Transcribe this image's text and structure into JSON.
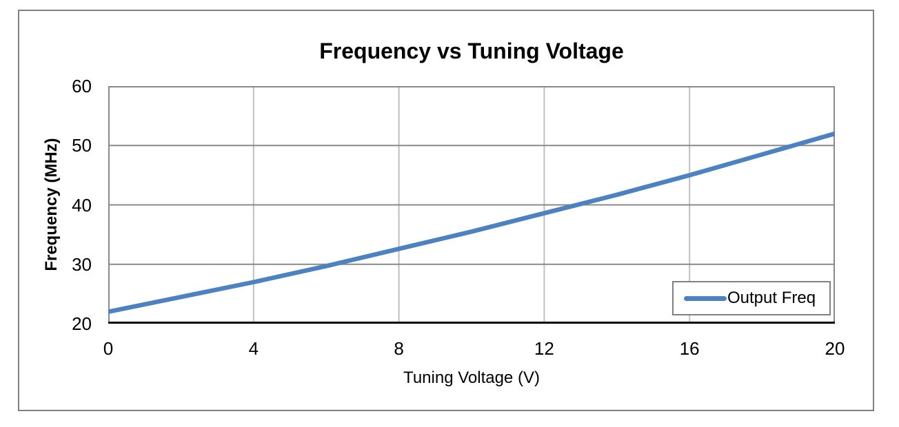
{
  "chart_data": {
    "type": "line",
    "title": "Frequency vs Tuning Voltage",
    "xlabel": "Tuning Voltage (V)",
    "ylabel": "Frequency (MHz)",
    "xlim": [
      0,
      20
    ],
    "ylim": [
      20,
      60
    ],
    "x_ticks": [
      0,
      4,
      8,
      12,
      16,
      20
    ],
    "y_ticks": [
      20,
      30,
      40,
      50,
      60
    ],
    "grid": true,
    "legend": {
      "position": "inside-bottom-right",
      "entries": [
        {
          "label": "Output Freq",
          "color": "#4F81BD"
        }
      ]
    },
    "series": [
      {
        "name": "Output Freq",
        "color": "#4F81BD",
        "x": [
          0,
          2,
          4,
          6,
          8,
          10,
          12,
          14,
          16,
          18,
          20
        ],
        "y": [
          22.0,
          24.5,
          27.0,
          29.7,
          32.6,
          35.5,
          38.6,
          41.7,
          45.0,
          48.5,
          52.0
        ]
      }
    ]
  },
  "colors": {
    "line": "#4F81BD",
    "grid_horizontal": "#898989",
    "grid_vertical": "#BFBFBF",
    "axis": "#000000",
    "frame_border": "#808080",
    "background": "#FFFFFF",
    "text": "#000000"
  }
}
